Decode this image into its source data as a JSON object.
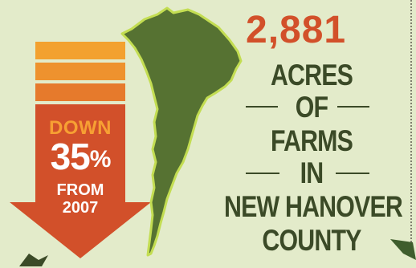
{
  "stats": {
    "down_label": "DOWN",
    "percent_value": "35",
    "percent_sign": "%",
    "from_label": "FROM",
    "year": "2007",
    "acres_count": "2,881",
    "line1": "ACRES",
    "line2": "OF",
    "line3": "FARMS",
    "line4": "IN",
    "line5": "NEW HANOVER",
    "line6": "COUNTY"
  },
  "colors": {
    "background": "#e3ebca",
    "arrow_top": "#f3a12f",
    "arrow_mid": "#eb8a2e",
    "arrow_bottom": "#d2502a",
    "county_fill": "#567232",
    "county_outline": "#c3dd52",
    "headline_dark": "#3b4a27",
    "number_red": "#d2502a"
  },
  "icons": [
    "down-arrow-graphic",
    "county-map-graphic",
    "leaf-decoration"
  ]
}
